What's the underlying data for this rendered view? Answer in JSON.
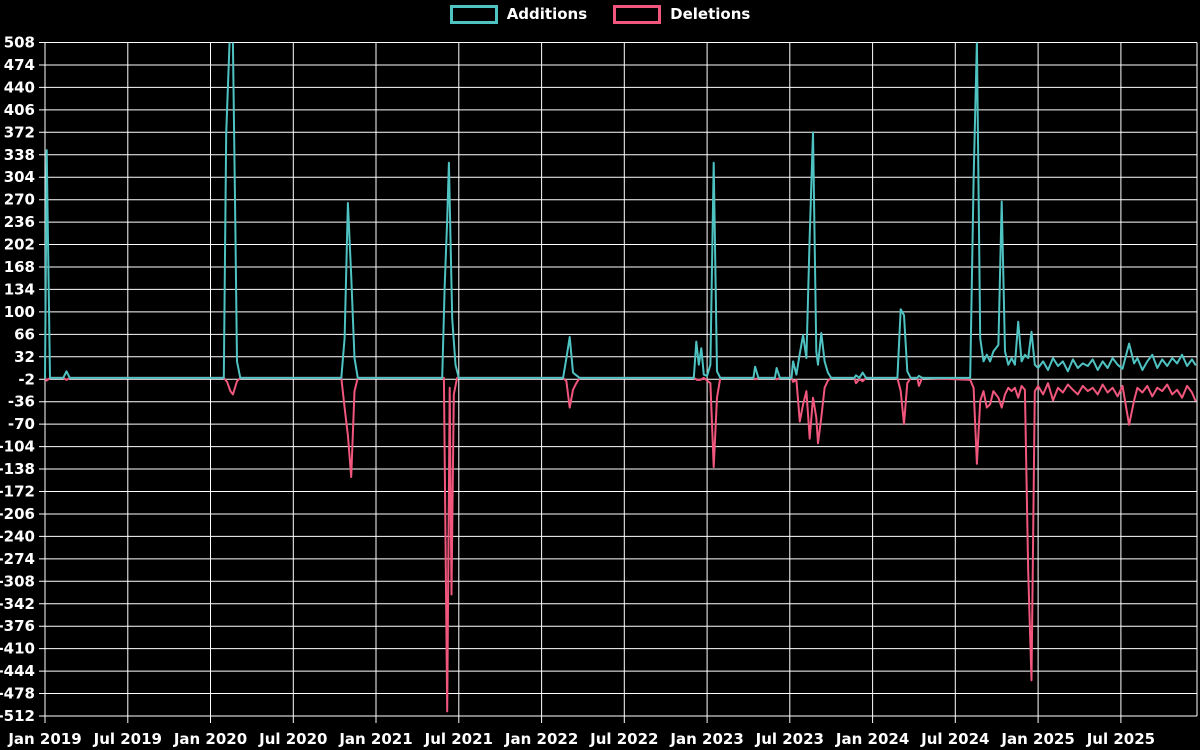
{
  "chart_data": {
    "type": "line",
    "title": "",
    "legend_position": "top-center",
    "colors": {
      "background": "#000000",
      "grid": "#ffffff",
      "text": "#ffffff"
    },
    "x_domain": [
      2019.0,
      2025.96
    ],
    "y_domain": [
      -512,
      508
    ],
    "y_ticks": [
      508,
      474,
      440,
      406,
      372,
      338,
      304,
      270,
      236,
      202,
      168,
      134,
      100,
      66,
      32,
      -2,
      -36,
      -70,
      -104,
      -138,
      -172,
      -206,
      -240,
      -274,
      -308,
      -342,
      -376,
      -410,
      -444,
      -478,
      -512
    ],
    "x_ticks": [
      {
        "t": 2019.0,
        "label": "Jan 2019"
      },
      {
        "t": 2019.5,
        "label": "Jul 2019"
      },
      {
        "t": 2020.0,
        "label": "Jan 2020"
      },
      {
        "t": 2020.5,
        "label": "Jul 2020"
      },
      {
        "t": 2021.0,
        "label": "Jan 2021"
      },
      {
        "t": 2021.5,
        "label": "Jul 2021"
      },
      {
        "t": 2022.0,
        "label": "Jan 2022"
      },
      {
        "t": 2022.5,
        "label": "Jul 2022"
      },
      {
        "t": 2023.0,
        "label": "Jan 2023"
      },
      {
        "t": 2023.5,
        "label": "Jul 2023"
      },
      {
        "t": 2024.0,
        "label": "Jan 2024"
      },
      {
        "t": 2024.5,
        "label": "Jul 2024"
      },
      {
        "t": 2025.0,
        "label": "Jan 2025"
      },
      {
        "t": 2025.5,
        "label": "Jul 2025"
      }
    ],
    "series": [
      {
        "name": "Additions",
        "color": "#4fc2c2",
        "points": [
          [
            2019.0,
            0
          ],
          [
            2019.01,
            345
          ],
          [
            2019.03,
            0
          ],
          [
            2019.11,
            0
          ],
          [
            2019.13,
            10
          ],
          [
            2019.15,
            0
          ],
          [
            2020.08,
            0
          ],
          [
            2020.095,
            370
          ],
          [
            2020.115,
            510
          ],
          [
            2020.135,
            510
          ],
          [
            2020.15,
            235
          ],
          [
            2020.16,
            25
          ],
          [
            2020.18,
            0
          ],
          [
            2020.79,
            0
          ],
          [
            2020.81,
            60
          ],
          [
            2020.83,
            265
          ],
          [
            2020.85,
            155
          ],
          [
            2020.87,
            30
          ],
          [
            2020.89,
            0
          ],
          [
            2021.4,
            0
          ],
          [
            2021.415,
            140
          ],
          [
            2021.43,
            240
          ],
          [
            2021.44,
            326
          ],
          [
            2021.46,
            90
          ],
          [
            2021.48,
            20
          ],
          [
            2021.5,
            0
          ],
          [
            2022.13,
            0
          ],
          [
            2022.15,
            30
          ],
          [
            2022.17,
            62
          ],
          [
            2022.19,
            8
          ],
          [
            2022.21,
            4
          ],
          [
            2022.23,
            0
          ],
          [
            2022.92,
            0
          ],
          [
            2022.935,
            55
          ],
          [
            2022.95,
            20
          ],
          [
            2022.965,
            45
          ],
          [
            2022.98,
            5
          ],
          [
            2023.0,
            3
          ],
          [
            2023.02,
            20
          ],
          [
            2023.04,
            326
          ],
          [
            2023.06,
            10
          ],
          [
            2023.08,
            0
          ],
          [
            2023.28,
            0
          ],
          [
            2023.29,
            17
          ],
          [
            2023.31,
            0
          ],
          [
            2023.41,
            0
          ],
          [
            2023.42,
            15
          ],
          [
            2023.44,
            0
          ],
          [
            2023.51,
            0
          ],
          [
            2023.52,
            25
          ],
          [
            2023.54,
            5
          ],
          [
            2023.56,
            37
          ],
          [
            2023.58,
            65
          ],
          [
            2023.6,
            30
          ],
          [
            2023.62,
            215
          ],
          [
            2023.64,
            372
          ],
          [
            2023.66,
            40
          ],
          [
            2023.67,
            20
          ],
          [
            2023.69,
            68
          ],
          [
            2023.71,
            25
          ],
          [
            2023.73,
            8
          ],
          [
            2023.75,
            0
          ],
          [
            2023.89,
            0
          ],
          [
            2023.9,
            4
          ],
          [
            2023.92,
            0
          ],
          [
            2023.94,
            8
          ],
          [
            2023.96,
            0
          ],
          [
            2024.15,
            0
          ],
          [
            2024.17,
            104
          ],
          [
            2024.19,
            95
          ],
          [
            2024.21,
            10
          ],
          [
            2024.23,
            0
          ],
          [
            2024.27,
            0
          ],
          [
            2024.28,
            3
          ],
          [
            2024.3,
            0
          ],
          [
            2024.59,
            0
          ],
          [
            2024.61,
            300
          ],
          [
            2024.63,
            510
          ],
          [
            2024.65,
            60
          ],
          [
            2024.67,
            25
          ],
          [
            2024.69,
            35
          ],
          [
            2024.71,
            25
          ],
          [
            2024.73,
            40
          ],
          [
            2024.76,
            50
          ],
          [
            2024.78,
            267
          ],
          [
            2024.8,
            40
          ],
          [
            2024.82,
            20
          ],
          [
            2024.84,
            30
          ],
          [
            2024.86,
            20
          ],
          [
            2024.88,
            85
          ],
          [
            2024.9,
            25
          ],
          [
            2024.92,
            35
          ],
          [
            2024.94,
            30
          ],
          [
            2024.96,
            70
          ],
          [
            2024.98,
            20
          ],
          [
            2025.0,
            15
          ],
          [
            2025.03,
            25
          ],
          [
            2025.06,
            12
          ],
          [
            2025.09,
            30
          ],
          [
            2025.12,
            18
          ],
          [
            2025.15,
            25
          ],
          [
            2025.18,
            10
          ],
          [
            2025.21,
            28
          ],
          [
            2025.24,
            15
          ],
          [
            2025.27,
            22
          ],
          [
            2025.3,
            18
          ],
          [
            2025.33,
            28
          ],
          [
            2025.36,
            12
          ],
          [
            2025.39,
            25
          ],
          [
            2025.42,
            15
          ],
          [
            2025.45,
            30
          ],
          [
            2025.48,
            20
          ],
          [
            2025.51,
            14
          ],
          [
            2025.55,
            52
          ],
          [
            2025.58,
            22
          ],
          [
            2025.6,
            30
          ],
          [
            2025.63,
            12
          ],
          [
            2025.66,
            25
          ],
          [
            2025.69,
            35
          ],
          [
            2025.72,
            15
          ],
          [
            2025.75,
            28
          ],
          [
            2025.78,
            18
          ],
          [
            2025.81,
            30
          ],
          [
            2025.84,
            22
          ],
          [
            2025.87,
            35
          ],
          [
            2025.9,
            18
          ],
          [
            2025.93,
            28
          ],
          [
            2025.95,
            20
          ]
        ]
      },
      {
        "name": "Deletions",
        "color": "#f1567c",
        "points": [
          [
            2019.0,
            0
          ],
          [
            2019.01,
            -4
          ],
          [
            2019.03,
            0
          ],
          [
            2019.11,
            0
          ],
          [
            2019.13,
            -3
          ],
          [
            2019.15,
            0
          ],
          [
            2020.08,
            0
          ],
          [
            2020.1,
            -6
          ],
          [
            2020.12,
            -20
          ],
          [
            2020.135,
            -25
          ],
          [
            2020.16,
            -5
          ],
          [
            2020.18,
            0
          ],
          [
            2020.79,
            0
          ],
          [
            2020.81,
            -45
          ],
          [
            2020.83,
            -87
          ],
          [
            2020.85,
            -150
          ],
          [
            2020.87,
            -20
          ],
          [
            2020.89,
            0
          ],
          [
            2021.41,
            0
          ],
          [
            2021.43,
            -505
          ],
          [
            2021.445,
            -15
          ],
          [
            2021.456,
            -328
          ],
          [
            2021.47,
            -25
          ],
          [
            2021.49,
            0
          ],
          [
            2022.13,
            0
          ],
          [
            2022.15,
            -5
          ],
          [
            2022.17,
            -45
          ],
          [
            2022.19,
            -18
          ],
          [
            2022.21,
            -8
          ],
          [
            2022.23,
            0
          ],
          [
            2022.92,
            0
          ],
          [
            2022.94,
            -3
          ],
          [
            2022.96,
            -3
          ],
          [
            2022.98,
            0
          ],
          [
            2023.02,
            -8
          ],
          [
            2023.04,
            -135
          ],
          [
            2023.06,
            -30
          ],
          [
            2023.08,
            0
          ],
          [
            2023.28,
            0
          ],
          [
            2023.29,
            -2
          ],
          [
            2023.31,
            0
          ],
          [
            2023.41,
            0
          ],
          [
            2023.42,
            -2
          ],
          [
            2023.44,
            0
          ],
          [
            2023.51,
            0
          ],
          [
            2023.52,
            -6
          ],
          [
            2023.54,
            -3
          ],
          [
            2023.56,
            -66
          ],
          [
            2023.58,
            -40
          ],
          [
            2023.6,
            -20
          ],
          [
            2023.62,
            -92
          ],
          [
            2023.64,
            -30
          ],
          [
            2023.66,
            -60
          ],
          [
            2023.67,
            -99
          ],
          [
            2023.69,
            -60
          ],
          [
            2023.71,
            -15
          ],
          [
            2023.73,
            -4
          ],
          [
            2023.75,
            0
          ],
          [
            2023.89,
            0
          ],
          [
            2023.9,
            -8
          ],
          [
            2023.92,
            -2
          ],
          [
            2023.94,
            -5
          ],
          [
            2023.96,
            0
          ],
          [
            2024.15,
            0
          ],
          [
            2024.17,
            -20
          ],
          [
            2024.19,
            -70
          ],
          [
            2024.21,
            -8
          ],
          [
            2024.23,
            0
          ],
          [
            2024.27,
            0
          ],
          [
            2024.28,
            -12
          ],
          [
            2024.3,
            0
          ],
          [
            2024.59,
            -3
          ],
          [
            2024.61,
            -15
          ],
          [
            2024.63,
            -130
          ],
          [
            2024.65,
            -35
          ],
          [
            2024.67,
            -20
          ],
          [
            2024.69,
            -45
          ],
          [
            2024.71,
            -40
          ],
          [
            2024.73,
            -20
          ],
          [
            2024.76,
            -30
          ],
          [
            2024.78,
            -45
          ],
          [
            2024.8,
            -25
          ],
          [
            2024.82,
            -15
          ],
          [
            2024.84,
            -20
          ],
          [
            2024.86,
            -15
          ],
          [
            2024.88,
            -30
          ],
          [
            2024.9,
            -12
          ],
          [
            2024.92,
            -18
          ],
          [
            2024.94,
            -293
          ],
          [
            2024.96,
            -458
          ],
          [
            2024.98,
            -20
          ],
          [
            2025.0,
            -12
          ],
          [
            2025.03,
            -25
          ],
          [
            2025.06,
            -8
          ],
          [
            2025.09,
            -34
          ],
          [
            2025.12,
            -15
          ],
          [
            2025.15,
            -22
          ],
          [
            2025.18,
            -10
          ],
          [
            2025.21,
            -18
          ],
          [
            2025.24,
            -25
          ],
          [
            2025.27,
            -12
          ],
          [
            2025.3,
            -20
          ],
          [
            2025.33,
            -15
          ],
          [
            2025.36,
            -25
          ],
          [
            2025.39,
            -10
          ],
          [
            2025.42,
            -22
          ],
          [
            2025.45,
            -15
          ],
          [
            2025.48,
            -28
          ],
          [
            2025.51,
            -12
          ],
          [
            2025.55,
            -71
          ],
          [
            2025.58,
            -34
          ],
          [
            2025.6,
            -15
          ],
          [
            2025.63,
            -22
          ],
          [
            2025.66,
            -12
          ],
          [
            2025.69,
            -28
          ],
          [
            2025.72,
            -15
          ],
          [
            2025.75,
            -20
          ],
          [
            2025.78,
            -10
          ],
          [
            2025.81,
            -25
          ],
          [
            2025.84,
            -18
          ],
          [
            2025.87,
            -30
          ],
          [
            2025.9,
            -12
          ],
          [
            2025.93,
            -22
          ],
          [
            2025.95,
            -34
          ]
        ]
      }
    ]
  }
}
